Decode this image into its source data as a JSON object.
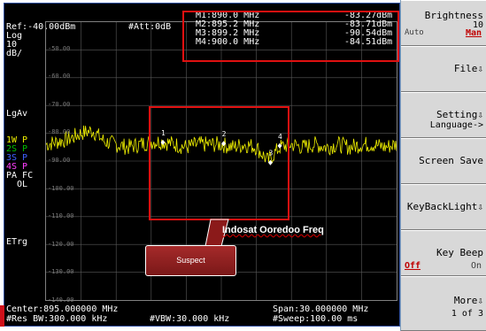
{
  "header": {
    "ref": "Ref:-40.00dBm",
    "att": "#Att:0dB",
    "scale": [
      "Log",
      "10",
      "dB/"
    ]
  },
  "markers": [
    {
      "label": "M1:890.0 MHz",
      "value": "-83.27dBm"
    },
    {
      "label": "M2:895.2 MHz",
      "value": "-83.71dBm"
    },
    {
      "label": "M3:899.2 MHz",
      "value": "-90.54dBm"
    },
    {
      "label": "M4:900.0 MHz",
      "value": "-84.51dBm"
    }
  ],
  "y_labels": [
    "-50.00",
    "-60.00",
    "-70.00",
    "-80.00",
    "-90.00",
    "-100.00",
    "-110.00",
    "-120.00",
    "-130.00",
    "-140.00"
  ],
  "side_labels": {
    "lgav": "LgAv",
    "traces": [
      {
        "text": "1W P",
        "color": "#f0f000"
      },
      {
        "text": "2S P",
        "color": "#00c000"
      },
      {
        "text": "3S P",
        "color": "#4060ff"
      },
      {
        "text": "4S P",
        "color": "#ff40ff"
      }
    ],
    "pafc": "PA FC",
    "ol": "OL",
    "etrg": "ETrg"
  },
  "footer": {
    "center": "Center:895.000000 MHz",
    "span": "Span:30.000000 MHz",
    "res_bw": "#Res BW:300.000 kHz",
    "vbw": "#VBW:30.000 kHz",
    "sweep": "#Sweep:100.00 ms"
  },
  "chart_data": {
    "type": "line",
    "x_unit": "MHz",
    "y_unit": "dBm",
    "xlim": [
      880,
      910
    ],
    "ylim": [
      -140,
      -40
    ],
    "grid": true,
    "series": [
      {
        "color": "#f0f000",
        "x": [
          880,
          881,
          882,
          883,
          884,
          885,
          886,
          887,
          888,
          889,
          890,
          891,
          892,
          893,
          894,
          895,
          896,
          897,
          898,
          899,
          900,
          901,
          902,
          903,
          904,
          905,
          906,
          907,
          908,
          909,
          910
        ],
        "y": [
          -84,
          -83,
          -82,
          -80,
          -79,
          -83,
          -84,
          -85,
          -84,
          -83,
          -83,
          -84,
          -85,
          -84,
          -84,
          -84,
          -85,
          -84,
          -85,
          -90,
          -85,
          -84,
          -85,
          -84,
          -85,
          -84,
          -85,
          -84,
          -84,
          -85,
          -84
        ]
      }
    ],
    "markers": [
      {
        "name": "1",
        "x": 890.0,
        "y": -83.27
      },
      {
        "name": "2",
        "x": 895.2,
        "y": -83.71
      },
      {
        "name": "3",
        "x": 899.2,
        "y": -90.54
      },
      {
        "name": "4",
        "x": 900.0,
        "y": -84.51
      }
    ]
  },
  "softkeys": [
    {
      "name": "brightness",
      "label": "Brightness",
      "sub": "10",
      "left": "Auto",
      "right": "Man"
    },
    {
      "name": "file",
      "label": "File⇩"
    },
    {
      "name": "setting",
      "label": "Setting⇩",
      "sub": "Language->"
    },
    {
      "name": "screen-save",
      "label": "Screen Save"
    },
    {
      "name": "keybacklight",
      "label": "KeyBackLight⇩"
    },
    {
      "name": "key-beep",
      "label": "Key Beep",
      "off": "Off",
      "on": "On"
    },
    {
      "name": "more",
      "label": "More⇩",
      "sub": "1 of 3"
    }
  ],
  "annotations": {
    "callout": "Suspect",
    "label": "Indosat Ooredoo Freq"
  }
}
